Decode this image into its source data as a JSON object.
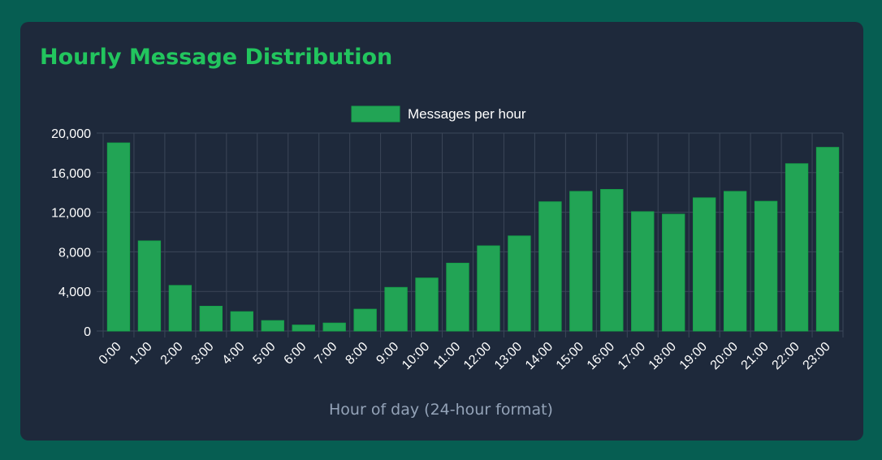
{
  "card": {
    "title": "Hourly Message Distribution"
  },
  "colors": {
    "page_bg": "#065e52",
    "card_bg": "#1e293b",
    "title": "#22c55e",
    "bar_fill": "#22a455",
    "bar_stroke": "#16a34a",
    "grid": "#3b4658",
    "axis_title": "#94a3b8",
    "tick_text": "#ffffff"
  },
  "chart_data": {
    "type": "bar",
    "categories": [
      "0:00",
      "1:00",
      "2:00",
      "3:00",
      "4:00",
      "5:00",
      "6:00",
      "7:00",
      "8:00",
      "9:00",
      "10:00",
      "11:00",
      "12:00",
      "13:00",
      "14:00",
      "15:00",
      "16:00",
      "17:00",
      "18:00",
      "19:00",
      "20:00",
      "21:00",
      "22:00",
      "23:00"
    ],
    "series": [
      {
        "name": "Messages per hour",
        "values": [
          19000,
          9100,
          4600,
          2500,
          1950,
          1050,
          600,
          800,
          2200,
          4400,
          5350,
          6850,
          8600,
          9600,
          13050,
          14100,
          14300,
          12050,
          11800,
          13450,
          14100,
          13100,
          16900,
          18550
        ]
      }
    ],
    "xlabel": "Hour of day (24-hour format)",
    "ylabel": "",
    "ylim": [
      0,
      20000
    ],
    "yticks": [
      "0",
      "4,000",
      "8,000",
      "12,000",
      "16,000",
      "20,000"
    ],
    "ytick_values": [
      0,
      4000,
      8000,
      12000,
      16000,
      20000
    ],
    "grid": true,
    "legend_position": "top-center"
  }
}
